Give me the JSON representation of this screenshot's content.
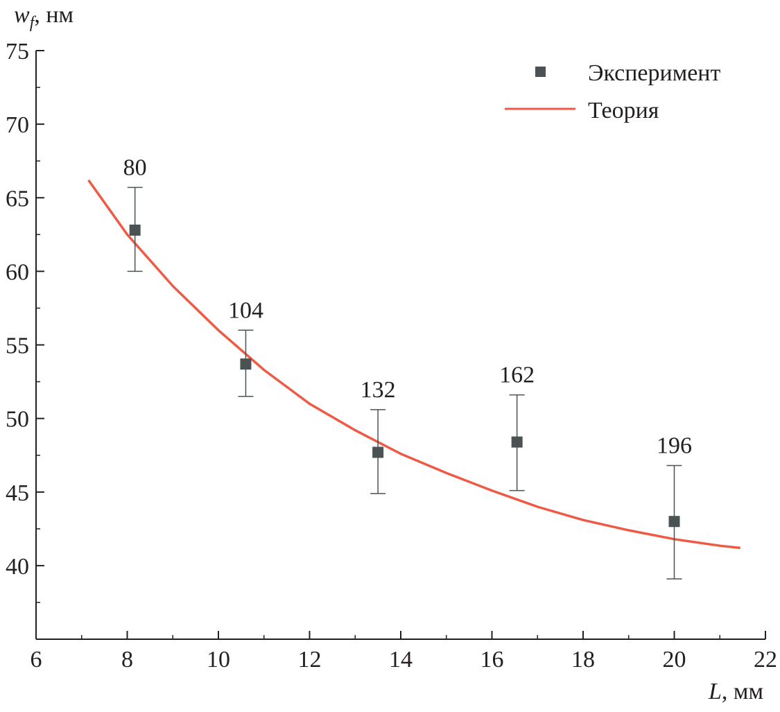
{
  "chart_data": {
    "type": "scatter",
    "title": "",
    "ylabel_main": "w",
    "ylabel_sub": "f",
    "ylabel_unit": ", нм",
    "xlabel_main": "L",
    "xlabel_unit": ", мм",
    "xlim": [
      6,
      22
    ],
    "ylim": [
      35,
      75
    ],
    "xticks": [
      6,
      8,
      10,
      12,
      14,
      16,
      18,
      20,
      22
    ],
    "yticks": [
      40,
      45,
      50,
      55,
      60,
      65,
      70,
      75
    ],
    "grid": false,
    "legend_position": "top-right",
    "legend": [
      "Эксперимент",
      "Теория"
    ],
    "colors": {
      "experiment": "#4a5254",
      "theory": "#ee5a45",
      "axis": "#231f20"
    },
    "experiment": {
      "name": "Эксперимент",
      "x": [
        8.17,
        10.6,
        13.5,
        16.55,
        20.0
      ],
      "y": [
        62.8,
        53.7,
        47.7,
        48.4,
        43.0
      ],
      "y_err_low": [
        60.0,
        51.5,
        44.9,
        45.1,
        39.1
      ],
      "y_err_high": [
        65.7,
        56.0,
        50.6,
        51.6,
        46.8
      ],
      "labels": [
        "80",
        "104",
        "132",
        "162",
        "196"
      ]
    },
    "theory": {
      "name": "Теория",
      "x": [
        7.15,
        8,
        9,
        10,
        11,
        12,
        13,
        14,
        15,
        16,
        17,
        18,
        19,
        20,
        21,
        21.45
      ],
      "y": [
        66.2,
        62.5,
        59.0,
        56.0,
        53.3,
        51.0,
        49.2,
        47.6,
        46.3,
        45.1,
        44.0,
        43.1,
        42.4,
        41.8,
        41.35,
        41.2
      ]
    }
  }
}
